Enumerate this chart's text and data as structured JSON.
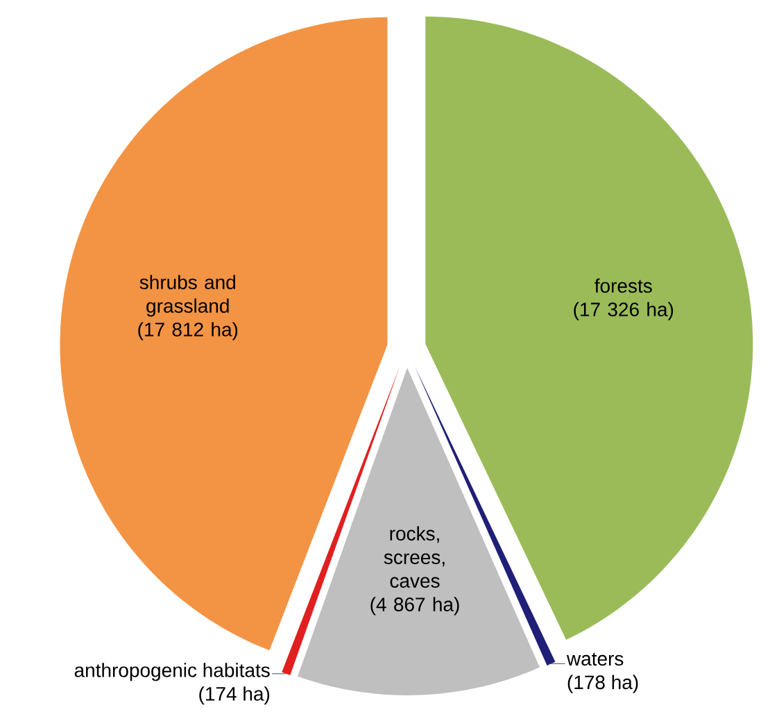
{
  "chart_data": {
    "type": "pie",
    "categories": [
      "forests",
      "waters",
      "rocks, screes, caves",
      "anthropogenic habitats",
      "shrubs and grassland"
    ],
    "values": [
      17326,
      178,
      4867,
      174,
      17812
    ],
    "value_labels": [
      "(17 326 ha)",
      "(178 ha)",
      "(4 867 ha)",
      "(174 ha)",
      "(17 812 ha)"
    ],
    "colors": [
      "#9bbb59",
      "#1f1f78",
      "#bfbfbf",
      "#e02020",
      "#f39444"
    ]
  }
}
